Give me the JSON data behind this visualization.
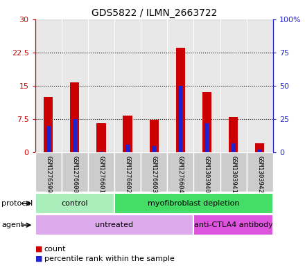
{
  "title": "GDS5822 / ILMN_2663722",
  "samples": [
    "GSM1276599",
    "GSM1276600",
    "GSM1276601",
    "GSM1276602",
    "GSM1276603",
    "GSM1276604",
    "GSM1303940",
    "GSM1303941",
    "GSM1303942"
  ],
  "counts": [
    12.5,
    15.8,
    6.5,
    8.2,
    7.3,
    23.5,
    13.5,
    8.0,
    2.0
  ],
  "percentiles": [
    20.0,
    25.0,
    0.5,
    5.5,
    4.5,
    50.0,
    22.0,
    7.0,
    2.0
  ],
  "ylim_left": [
    0,
    30
  ],
  "ylim_right": [
    0,
    100
  ],
  "yticks_left": [
    0,
    7.5,
    15,
    22.5,
    30
  ],
  "yticks_right": [
    0,
    25,
    50,
    75,
    100
  ],
  "ytick_labels_left": [
    "0",
    "7.5",
    "15",
    "22.5",
    "30"
  ],
  "ytick_labels_right": [
    "0",
    "25",
    "50",
    "75",
    "100%"
  ],
  "bar_color": "#cc0000",
  "percentile_color": "#2222cc",
  "col_bg_color": "#cccccc",
  "protocol_groups": [
    {
      "label": "control",
      "start": 0,
      "end": 3,
      "color": "#aaeebb"
    },
    {
      "label": "myofibroblast depletion",
      "start": 3,
      "end": 9,
      "color": "#44dd66"
    }
  ],
  "agent_groups": [
    {
      "label": "untreated",
      "start": 0,
      "end": 6,
      "color": "#ddaaee"
    },
    {
      "label": "anti-CTLA4 antibody",
      "start": 6,
      "end": 9,
      "color": "#dd55dd"
    }
  ],
  "legend_count_label": "count",
  "legend_percentile_label": "percentile rank within the sample",
  "protocol_label": "protocol",
  "agent_label": "agent",
  "bar_width": 0.35
}
